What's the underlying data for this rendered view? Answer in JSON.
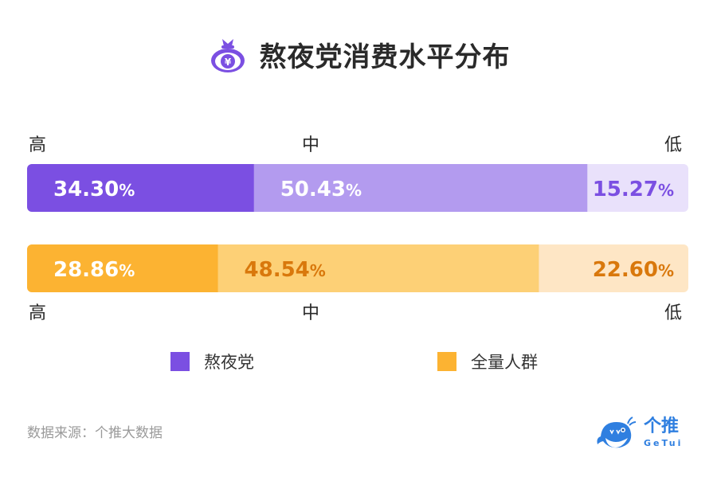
{
  "title": "熬夜党消费水平分布",
  "top_levels": {
    "high": "高",
    "mid": "中",
    "low": "低"
  },
  "bottom_levels": {
    "high": "高",
    "mid": "中",
    "low": "低"
  },
  "chart_data": {
    "type": "bar",
    "orientation": "horizontal",
    "stacked": true,
    "percent_scale": true,
    "categories": [
      "高",
      "中",
      "低"
    ],
    "series": [
      {
        "name": "熬夜党",
        "values": [
          34.3,
          50.43,
          15.27
        ],
        "labels": [
          "34.30%",
          "50.43%",
          "15.27%"
        ],
        "colors": [
          "#7b4fe2",
          "#b39bef",
          "#e9e1fb"
        ],
        "label_colors": [
          "#ffffff",
          "#ffffff",
          "#7b4fe2"
        ]
      },
      {
        "name": "全量人群",
        "values": [
          28.86,
          48.54,
          22.6
        ],
        "labels": [
          "28.86%",
          "48.54%",
          "22.60%"
        ],
        "colors": [
          "#fcb332",
          "#fdd076",
          "#fee6c5"
        ],
        "label_colors": [
          "#ffffff",
          "#d9780c",
          "#d9780c"
        ]
      }
    ],
    "legend": "bottom"
  },
  "legend": [
    {
      "label": "熬夜党",
      "color": "#7b4fe2"
    },
    {
      "label": "全量人群",
      "color": "#fcb332"
    }
  ],
  "source": "数据来源：个推大数据",
  "logo": {
    "name": "个推",
    "sub": "GeTui"
  }
}
